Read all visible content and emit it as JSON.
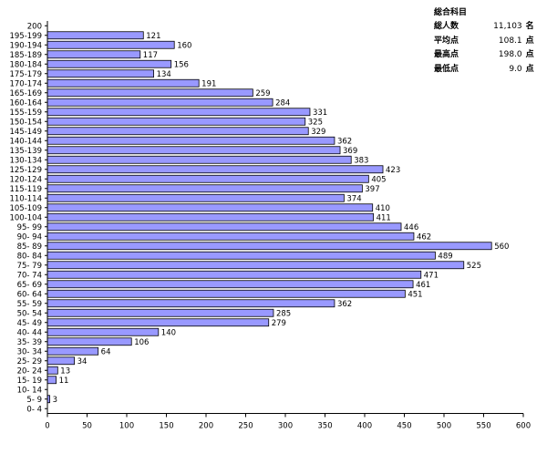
{
  "chart_data": {
    "type": "bar",
    "orientation": "horizontal",
    "categories": [
      "200",
      "195-199",
      "190-194",
      "185-189",
      "180-184",
      "175-179",
      "170-174",
      "165-169",
      "160-164",
      "155-159",
      "150-154",
      "145-149",
      "140-144",
      "135-139",
      "130-134",
      "125-129",
      "120-124",
      "115-119",
      "110-114",
      "105-109",
      "100-104",
      "95- 99",
      "90- 94",
      "85- 89",
      "80- 84",
      "75- 79",
      "70- 74",
      "65- 69",
      "60- 64",
      "55- 59",
      "50- 54",
      "45- 49",
      "40- 44",
      "35- 39",
      "30- 34",
      "25- 29",
      "20- 24",
      "15- 19",
      "10- 14",
      "5- 9",
      "0- 4"
    ],
    "values": [
      null,
      121,
      160,
      117,
      156,
      134,
      191,
      259,
      284,
      331,
      325,
      329,
      362,
      369,
      383,
      423,
      405,
      397,
      374,
      410,
      411,
      446,
      462,
      560,
      489,
      525,
      471,
      461,
      451,
      362,
      285,
      279,
      140,
      106,
      64,
      34,
      13,
      11,
      null,
      3,
      null
    ],
    "xlim": [
      0,
      600
    ],
    "xticks": [
      0,
      50,
      100,
      150,
      200,
      250,
      300,
      350,
      400,
      450,
      500,
      550,
      600
    ],
    "grid": false,
    "bar_color": "#9999ff"
  },
  "stats": {
    "title": "総合科目",
    "rows": [
      {
        "label": "総人数",
        "value": "11,103",
        "unit": "名"
      },
      {
        "label": "平均点",
        "value": "108.1",
        "unit": "点"
      },
      {
        "label": "最高点",
        "value": "198.0",
        "unit": "点"
      },
      {
        "label": "最低点",
        "value": "9.0",
        "unit": "点"
      }
    ]
  }
}
